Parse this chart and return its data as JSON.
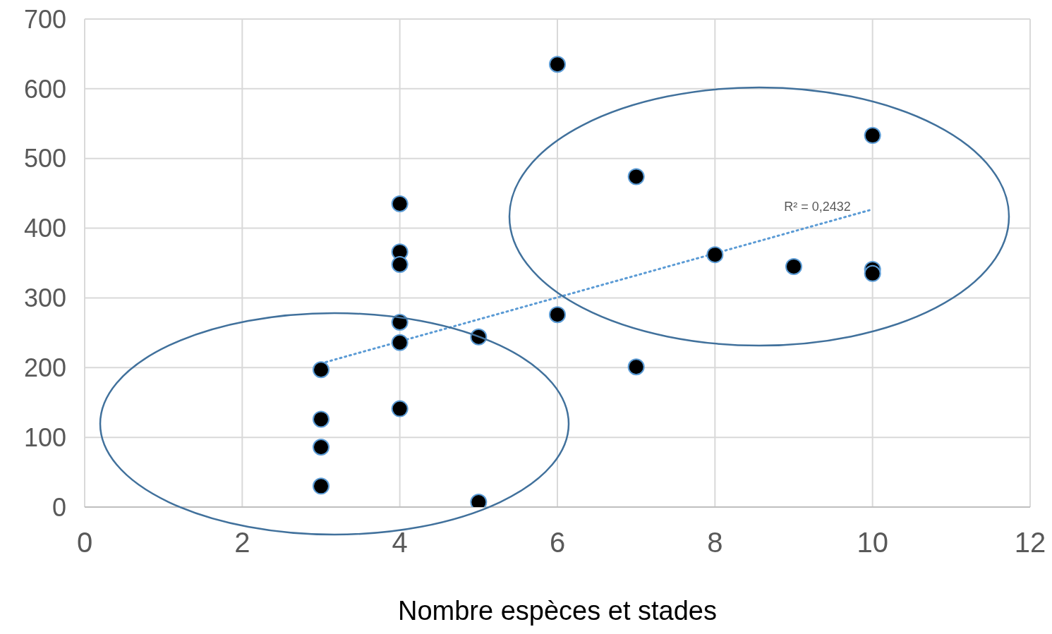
{
  "chart_data": {
    "type": "scatter",
    "xlabel": "Nombre espèces et stades",
    "xlim": [
      0,
      12
    ],
    "xticks": [
      0,
      2,
      4,
      6,
      8,
      10,
      12
    ],
    "ylim": [
      0,
      700
    ],
    "yticks": [
      0,
      100,
      200,
      300,
      400,
      500,
      600,
      700
    ],
    "grid": true,
    "legend": false,
    "marker": "circle",
    "series": [
      {
        "color": "#000000",
        "x": [
          3,
          3,
          3,
          3,
          4,
          4,
          4,
          4,
          4,
          4,
          5,
          5,
          6,
          6,
          7,
          7,
          8,
          9,
          10,
          10,
          10
        ],
        "values": [
          197,
          126,
          86,
          30,
          435,
          366,
          348,
          265,
          236,
          141,
          244,
          7,
          635,
          276,
          474,
          201,
          362,
          345,
          533,
          341,
          335
        ]
      },
      {
        "type": "line",
        "color": "#5b9bd5",
        "line_style": "dotted",
        "marker": "none",
        "x": [
          3,
          10
        ],
        "values": [
          206,
          427
        ]
      }
    ],
    "annotations": [
      "R² = 0,2432"
    ]
  }
}
